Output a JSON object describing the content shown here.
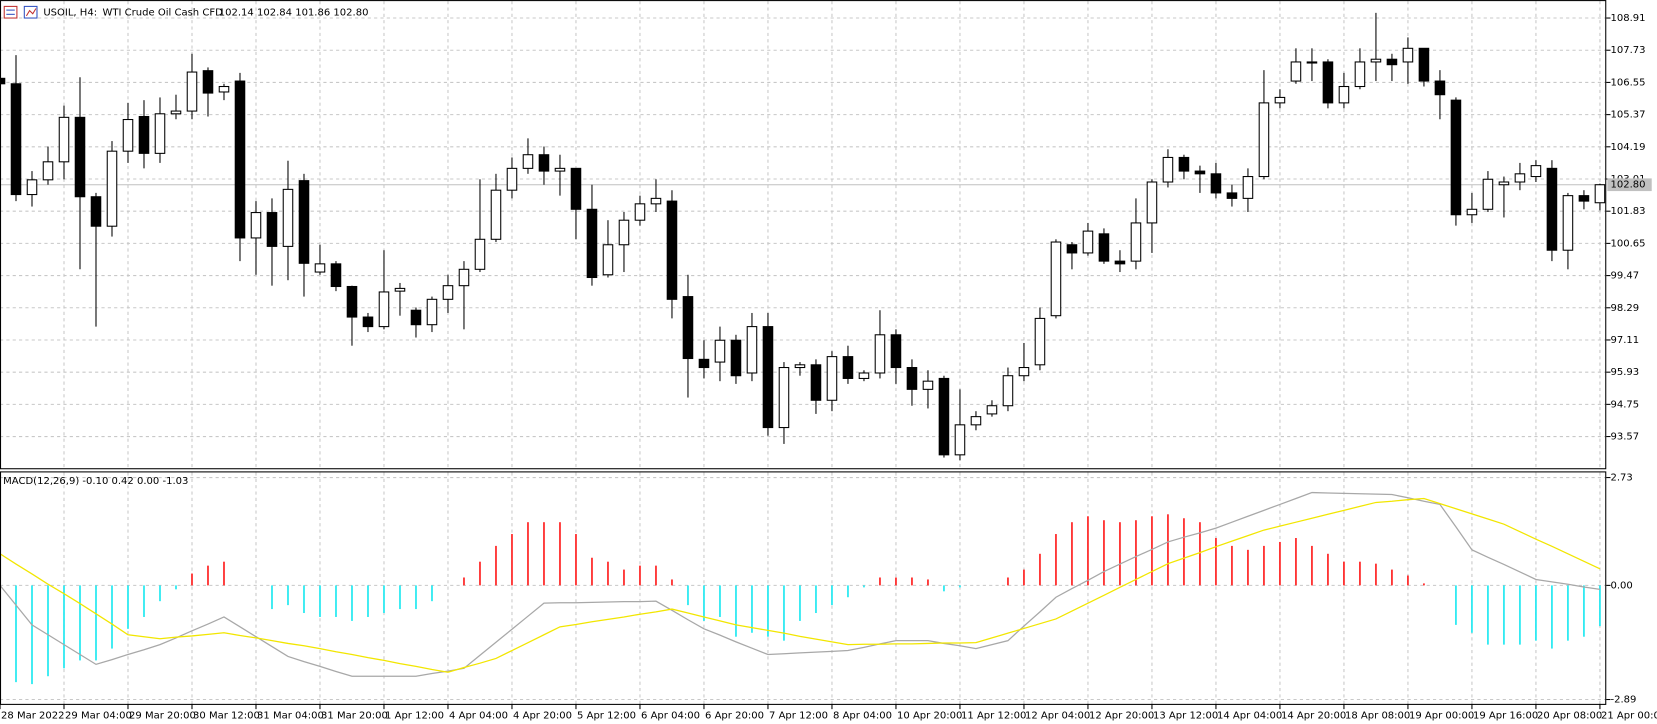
{
  "chart_data": [
    {
      "type": "candlestick",
      "title": "USOIL, H4:",
      "subtitle": "WTI Crude Oil Cash CFD",
      "header_values": "102.14 102.84 101.86 102.80",
      "last_label": "102.80",
      "up_color": "#ffffff",
      "down_color": "#000000",
      "wick_color": "#000000",
      "grid": true,
      "ylim": [
        92.41,
        109.53
      ],
      "yticks": [
        108.91,
        107.73,
        106.55,
        105.37,
        104.19,
        103.01,
        101.83,
        100.65,
        99.47,
        98.29,
        97.11,
        95.93,
        94.75,
        93.57
      ],
      "categories": [
        "28 Mar 2022",
        null,
        null,
        null,
        "29 Mar 04:00",
        null,
        null,
        null,
        "29 Mar 20:00",
        null,
        null,
        null,
        "30 Mar 12:00",
        null,
        null,
        null,
        "31 Mar 04:00",
        null,
        null,
        null,
        "31 Mar 20:00",
        null,
        null,
        null,
        "1 Apr 12:00",
        null,
        null,
        null,
        "4 Apr 04:00",
        null,
        null,
        null,
        "4 Apr 20:00",
        null,
        null,
        null,
        "5 Apr 12:00",
        null,
        null,
        null,
        "6 Apr 04:00",
        null,
        null,
        null,
        "6 Apr 20:00",
        null,
        null,
        null,
        "7 Apr 12:00",
        null,
        null,
        null,
        "8 Apr 04:00",
        null,
        null,
        null,
        "10 Apr 20:00",
        null,
        null,
        null,
        "11 Apr 12:00",
        null,
        null,
        null,
        "12 Apr 04:00",
        null,
        null,
        null,
        "12 Apr 20:00",
        null,
        null,
        null,
        "13 Apr 12:00",
        null,
        null,
        null,
        "14 Apr 04:00",
        null,
        null,
        null,
        "14 Apr 20:00",
        null,
        null,
        null,
        "18 Apr 08:00",
        null,
        null,
        null,
        "19 Apr 00:00",
        null,
        null,
        null,
        "19 Apr 16:00",
        null,
        null,
        null,
        "20 Apr 08:00",
        null,
        null,
        null,
        "21 Apr 00:00"
      ],
      "open": [
        106.7,
        106.5,
        102.44,
        102.98,
        103.64,
        105.27,
        102.36,
        101.28,
        104.03,
        105.3,
        103.95,
        105.4,
        105.5,
        106.98,
        106.2,
        106.6,
        100.85,
        101.78,
        100.54,
        102.95,
        99.6,
        99.9,
        99.07,
        97.95,
        97.6,
        98.9,
        98.2,
        97.67,
        98.6,
        99.1,
        99.7,
        100.8,
        102.6,
        103.4,
        103.9,
        103.3,
        103.4,
        101.9,
        99.5,
        100.6,
        101.5,
        102.1,
        102.2,
        98.7,
        96.4,
        96.3,
        97.1,
        95.9,
        97.6,
        93.9,
        96.1,
        96.2,
        94.9,
        96.5,
        95.7,
        95.9,
        97.3,
        96.1,
        95.3,
        95.7,
        92.9,
        94.0,
        94.4,
        94.7,
        95.8,
        96.2,
        98.0,
        100.6,
        100.3,
        101.0,
        100.0,
        100.0,
        101.4,
        102.9,
        103.8,
        103.3,
        103.2,
        102.5,
        102.3,
        103.1,
        105.8,
        106.6,
        107.3,
        107.3,
        105.8,
        106.4,
        107.3,
        107.4,
        107.3,
        107.8,
        106.6,
        105.9,
        101.7,
        101.9,
        102.8,
        102.9,
        103.1,
        103.4,
        100.4,
        102.4,
        102.14
      ],
      "high": [
        106.9,
        107.55,
        103.3,
        104.2,
        105.7,
        106.74,
        102.5,
        104.4,
        105.8,
        105.9,
        106.0,
        106.1,
        107.6,
        107.1,
        106.5,
        106.9,
        102.2,
        102.3,
        103.68,
        103.2,
        100.6,
        100.0,
        99.1,
        98.1,
        100.4,
        99.2,
        98.3,
        98.7,
        99.5,
        100.0,
        103.0,
        103.2,
        103.8,
        104.5,
        104.2,
        103.9,
        103.4,
        102.8,
        101.5,
        101.8,
        102.4,
        103.0,
        102.6,
        99.5,
        97.1,
        97.6,
        97.3,
        98.1,
        98.1,
        96.3,
        96.3,
        96.4,
        96.7,
        96.9,
        96.0,
        98.2,
        97.5,
        96.4,
        96.0,
        95.8,
        95.3,
        94.5,
        94.9,
        96.1,
        97.0,
        98.3,
        100.8,
        100.7,
        101.4,
        101.2,
        100.4,
        102.3,
        103.0,
        104.1,
        103.9,
        103.5,
        103.6,
        102.8,
        103.4,
        107.0,
        106.3,
        107.8,
        107.8,
        107.4,
        106.9,
        107.8,
        109.1,
        107.6,
        108.2,
        107.8,
        107.0,
        106.0,
        102.5,
        103.3,
        103.1,
        103.6,
        103.7,
        103.7,
        102.5,
        102.6,
        102.84
      ],
      "low": [
        106.4,
        102.2,
        102.0,
        102.8,
        103.0,
        99.7,
        97.6,
        100.9,
        103.6,
        103.4,
        103.6,
        105.2,
        105.2,
        105.3,
        105.9,
        100.0,
        99.5,
        99.1,
        99.3,
        98.7,
        99.5,
        98.9,
        96.9,
        97.4,
        97.5,
        98.0,
        97.2,
        97.4,
        98.1,
        97.5,
        99.6,
        100.7,
        102.3,
        103.2,
        102.8,
        102.4,
        100.8,
        99.1,
        99.4,
        99.6,
        101.3,
        101.8,
        97.9,
        95.0,
        95.7,
        95.6,
        95.5,
        95.6,
        93.6,
        93.3,
        95.8,
        94.4,
        94.5,
        95.5,
        95.6,
        95.7,
        95.5,
        94.7,
        94.6,
        92.8,
        92.7,
        93.8,
        94.3,
        94.5,
        95.6,
        96.0,
        97.9,
        99.7,
        100.2,
        99.9,
        99.6,
        99.7,
        100.3,
        102.7,
        103.0,
        102.5,
        102.3,
        102.0,
        101.8,
        103.0,
        105.6,
        106.5,
        106.6,
        105.6,
        105.6,
        106.3,
        106.6,
        106.6,
        106.5,
        106.4,
        105.2,
        101.3,
        101.4,
        101.8,
        101.6,
        102.6,
        102.9,
        100.0,
        99.7,
        101.9,
        101.86
      ],
      "close": [
        106.5,
        102.44,
        102.98,
        103.64,
        105.27,
        102.36,
        101.28,
        104.03,
        105.19,
        103.95,
        105.4,
        105.5,
        106.93,
        106.16,
        106.4,
        100.85,
        101.78,
        100.54,
        102.63,
        99.92,
        99.9,
        99.07,
        97.95,
        97.6,
        98.87,
        99.0,
        97.67,
        98.6,
        99.1,
        99.7,
        100.8,
        102.6,
        103.4,
        103.9,
        103.3,
        103.4,
        101.9,
        99.4,
        100.6,
        101.5,
        102.1,
        102.3,
        98.6,
        96.43,
        96.1,
        97.1,
        95.8,
        97.6,
        93.9,
        96.1,
        96.2,
        94.9,
        96.5,
        95.7,
        95.9,
        97.3,
        96.1,
        95.3,
        95.6,
        92.9,
        94.0,
        94.3,
        94.7,
        95.8,
        96.1,
        97.9,
        100.7,
        100.3,
        101.1,
        100.0,
        99.9,
        101.4,
        102.9,
        103.8,
        103.3,
        103.2,
        102.5,
        102.3,
        103.1,
        105.8,
        106.0,
        107.3,
        107.3,
        105.8,
        106.4,
        107.3,
        107.4,
        107.2,
        107.8,
        106.6,
        106.1,
        101.7,
        101.9,
        103.0,
        102.9,
        103.2,
        103.5,
        100.4,
        102.4,
        102.2,
        102.8
      ]
    },
    {
      "type": "macd",
      "title": "MACD(12,26,9) -0.10 0.42 0.00 -1.03",
      "ylim": [
        -3.0,
        2.86
      ],
      "yticks": [
        2.73,
        {
          "value": 0,
          "label": "0.00"
        },
        -2.89
      ],
      "series": [
        {
          "style": "histogram",
          "positive_color": "#ff0000",
          "negative_color": "#00e5ee",
          "values": [
            -1.8,
            -2.45,
            -2.5,
            -2.3,
            -2.1,
            -1.9,
            -1.9,
            -1.6,
            -1.1,
            -0.8,
            -0.4,
            -0.1,
            0.3,
            0.5,
            0.6,
            0,
            0,
            -0.6,
            -0.5,
            -0.7,
            -0.8,
            -0.8,
            -0.9,
            -0.8,
            -0.7,
            -0.6,
            -0.6,
            -0.4,
            0,
            0.2,
            0.6,
            1.0,
            1.3,
            1.6,
            1.6,
            1.6,
            1.3,
            0.7,
            0.6,
            0.4,
            0.5,
            0.5,
            0.15,
            -0.5,
            -0.9,
            -0.8,
            -1.3,
            -1.2,
            -1.3,
            -1.4,
            -0.9,
            -0.7,
            -0.5,
            -0.3,
            -0.05,
            0.2,
            0.2,
            0.2,
            0.15,
            -0.15,
            -0.05,
            0,
            0,
            0.2,
            0.4,
            0.8,
            1.3,
            1.6,
            1.75,
            1.65,
            1.6,
            1.65,
            1.75,
            1.8,
            1.7,
            1.6,
            1.2,
            1.0,
            0.9,
            1.0,
            1.1,
            1.2,
            1.0,
            0.8,
            0.6,
            0.6,
            0.55,
            0.4,
            0.25,
            0.05,
            0,
            -1.0,
            -1.2,
            -1.5,
            -1.5,
            -1.5,
            -1.4,
            -1.6,
            -1.4,
            -1.3,
            -1.03
          ]
        },
        {
          "style": "line",
          "color": "#a8a8a8",
          "values": [
            0,
            -0.5,
            -1.0,
            -1.25,
            -1.5,
            -1.75,
            -2.0,
            -1.88,
            -1.75,
            -1.63,
            -1.5,
            -1.33,
            -1.15,
            -0.98,
            -0.8,
            -1.05,
            -1.3,
            -1.55,
            -1.8,
            -1.93,
            -2.05,
            -2.18,
            -2.3,
            -2.3,
            -2.3,
            -2.3,
            -2.3,
            -2.23,
            -2.17,
            -2.1,
            -1.77,
            -1.44,
            -1.11,
            -0.78,
            -0.45,
            -0.44,
            -0.44,
            -0.43,
            -0.42,
            -0.41,
            -0.41,
            -0.4,
            -0.63,
            -0.87,
            -1.1,
            -1.26,
            -1.43,
            -1.59,
            -1.75,
            -1.73,
            -1.71,
            -1.69,
            -1.67,
            -1.65,
            -1.57,
            -1.48,
            -1.4,
            -1.4,
            -1.4,
            -1.47,
            -1.53,
            -1.6,
            -1.5,
            -1.4,
            -1.03,
            -0.67,
            -0.3,
            -0.08,
            0.13,
            0.35,
            0.54,
            0.73,
            0.91,
            1.1,
            1.22,
            1.33,
            1.45,
            1.6,
            1.75,
            1.9,
            2.05,
            2.2,
            2.35,
            2.34,
            2.33,
            2.32,
            2.31,
            2.3,
            2.22,
            2.13,
            2.05,
            1.48,
            0.9,
            0.71,
            0.53,
            0.34,
            0.15,
            0.09,
            0.03,
            -0.04,
            -0.1
          ]
        },
        {
          "style": "line",
          "color": "#f2e600",
          "values": [
            0.8,
            0.54,
            0.29,
            0.03,
            -0.21,
            -0.46,
            -0.72,
            -0.98,
            -1.25,
            -1.3,
            -1.35,
            -1.31,
            -1.28,
            -1.24,
            -1.2,
            -1.27,
            -1.33,
            -1.4,
            -1.47,
            -1.53,
            -1.6,
            -1.68,
            -1.75,
            -1.83,
            -1.9,
            -1.98,
            -2.05,
            -2.13,
            -2.2,
            -2.08,
            -1.97,
            -1.85,
            -1.65,
            -1.45,
            -1.25,
            -1.05,
            -0.99,
            -0.92,
            -0.86,
            -0.8,
            -0.73,
            -0.67,
            -0.6,
            -0.7,
            -0.8,
            -0.9,
            -1.0,
            -1.07,
            -1.14,
            -1.21,
            -1.29,
            -1.36,
            -1.43,
            -1.5,
            -1.49,
            -1.49,
            -1.48,
            -1.48,
            -1.47,
            -1.46,
            -1.46,
            -1.45,
            -1.33,
            -1.21,
            -1.09,
            -0.97,
            -0.85,
            -0.65,
            -0.45,
            -0.25,
            -0.05,
            0.15,
            0.35,
            0.55,
            0.69,
            0.83,
            0.98,
            1.12,
            1.26,
            1.4,
            1.5,
            1.6,
            1.7,
            1.8,
            1.9,
            2.0,
            2.1,
            2.13,
            2.17,
            2.2,
            2.07,
            1.94,
            1.81,
            1.68,
            1.55,
            1.36,
            1.17,
            0.99,
            0.8,
            0.61,
            0.42
          ]
        }
      ]
    }
  ]
}
